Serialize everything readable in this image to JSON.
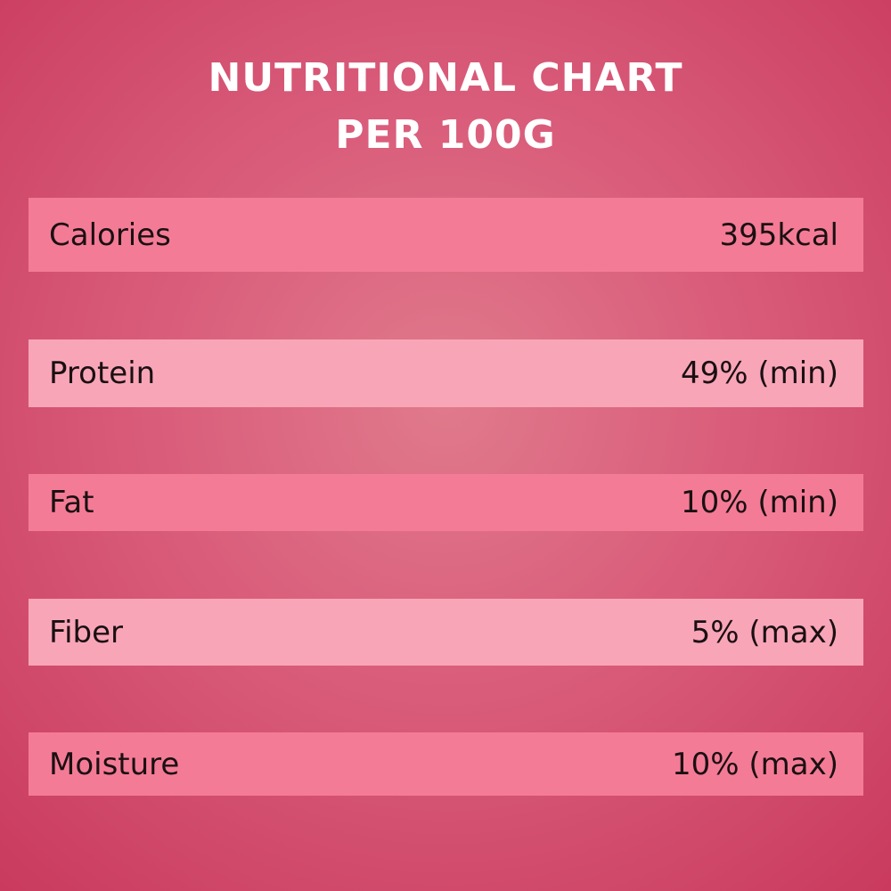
{
  "header": {
    "title_lines": [
      "NUTRITIONAL CHART",
      "PER 100G"
    ]
  },
  "table": {
    "rows": [
      [
        "Calories",
        "395kcal"
      ],
      [
        "Protein",
        "49% (min)"
      ],
      [
        "Fat",
        "10% (min)"
      ],
      [
        "Fiber",
        "5% (max)"
      ],
      [
        "Moisture",
        "10% (max)"
      ]
    ]
  }
}
